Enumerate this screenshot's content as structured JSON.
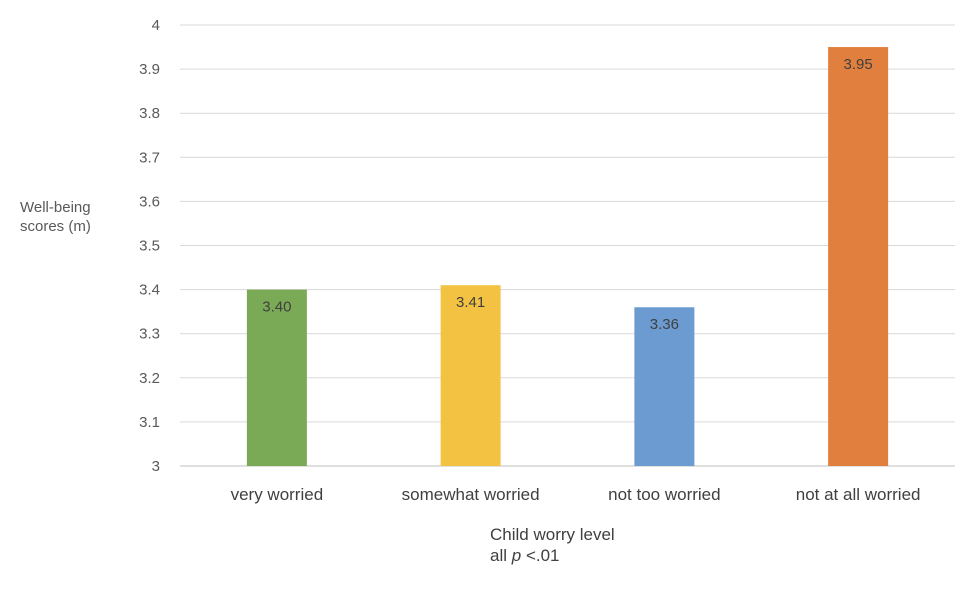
{
  "chart_data": {
    "type": "bar",
    "categories": [
      "very worried",
      "somewhat worried",
      "not too worried",
      "not at all worried"
    ],
    "values": [
      3.4,
      3.41,
      3.36,
      3.95
    ],
    "data_labels": [
      "3.40",
      "3.41",
      "3.36",
      "3.95"
    ],
    "colors": [
      "#7aaa55",
      "#f4c243",
      "#6b9bd1",
      "#e07f3e"
    ],
    "ylabel": "Well-being scores (m)",
    "xlabel": "Child worry level",
    "note_prefix": "all",
    "note_italic": "p",
    "note_suffix": "<.01",
    "ylim": [
      3,
      4
    ],
    "yticks": [
      3,
      3.1,
      3.2,
      3.3,
      3.4,
      3.5,
      3.6,
      3.7,
      3.8,
      3.9,
      4
    ],
    "ytick_labels": [
      "3",
      "3.1",
      "3.2",
      "3.3",
      "3.4",
      "3.5",
      "3.6",
      "3.7",
      "3.8",
      "3.9",
      "4"
    ],
    "grid": true,
    "legend": "none"
  }
}
